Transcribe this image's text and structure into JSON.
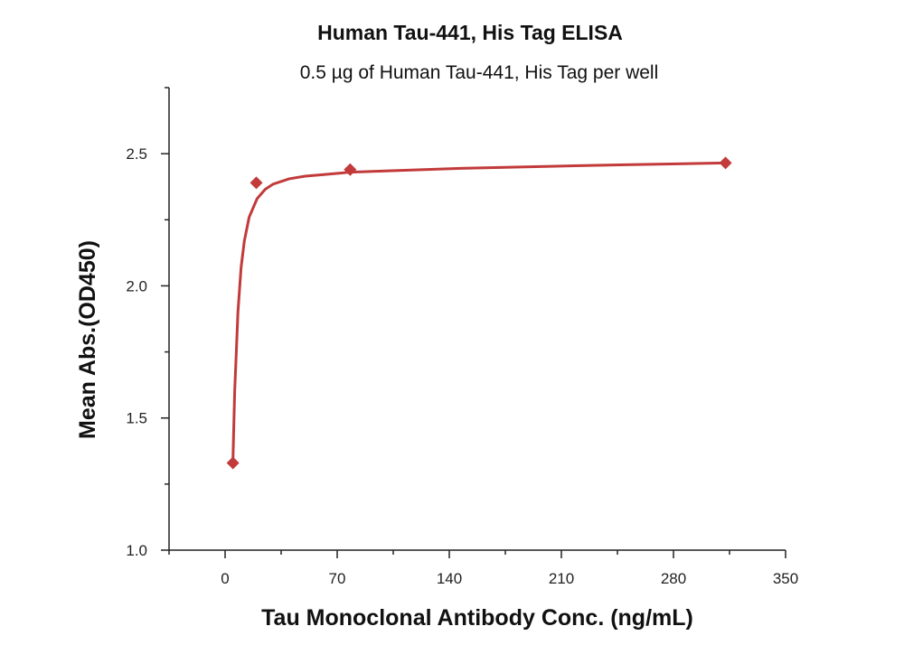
{
  "chart_data": {
    "type": "scatter",
    "title": "Human Tau-441, His Tag ELISA",
    "subtitle": "0.5 µg of Human Tau-441, His Tag per well",
    "xlabel": "Tau Monoclonal Antibody Conc. (ng/mL)",
    "ylabel": "Mean Abs.(OD450)",
    "xlim": [
      -35,
      350
    ],
    "ylim": [
      1.0,
      2.75
    ],
    "xticks": [
      0,
      70,
      140,
      210,
      280,
      350
    ],
    "xtick_labels": [
      "0",
      "70",
      "140",
      "210",
      "280",
      "350"
    ],
    "yticks": [
      1.0,
      1.5,
      2.0,
      2.5
    ],
    "ytick_labels": [
      "1.0",
      "1.5",
      "2.0",
      "2.5"
    ],
    "grid": false,
    "series": [
      {
        "x": [
          4.88,
          19.5,
          78.1,
          312.5
        ],
        "y": [
          1.33,
          2.39,
          2.44,
          2.465
        ],
        "color": "#c23a3a",
        "marker": "diamond"
      }
    ],
    "fit_curve": {
      "x": [
        4.88,
        6,
        8,
        10,
        12,
        15,
        20,
        25,
        30,
        40,
        50,
        60,
        78.1,
        100,
        150,
        200,
        250,
        312.5
      ],
      "y": [
        1.33,
        1.6,
        1.9,
        2.07,
        2.17,
        2.26,
        2.33,
        2.365,
        2.385,
        2.405,
        2.415,
        2.42,
        2.43,
        2.435,
        2.445,
        2.452,
        2.458,
        2.465
      ],
      "color": "#c23a3a"
    }
  }
}
